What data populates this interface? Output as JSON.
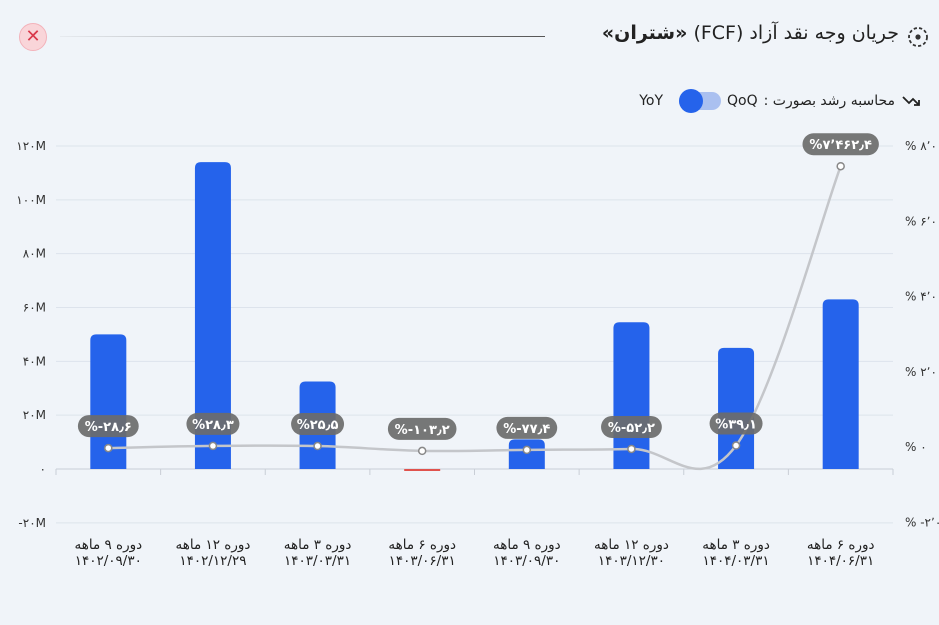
{
  "header": {
    "close_icon": "close-icon",
    "title_prefix": "جریان وجه نقد آزاد (FCF)",
    "title_ticker": "«شتران»",
    "title_icon": "target-icon"
  },
  "controls": {
    "growth_label": "محاسبه رشد بصورت :",
    "option_left": "YoY",
    "option_right": "QoQ",
    "growth_icon": "trend-icon",
    "selected": "QoQ"
  },
  "colors": {
    "bar": "#2563eb",
    "negative_bar": "#e0524d",
    "line": "#c4c6ca",
    "label_bg": "#6b6b6b",
    "background": "#f0f4f9"
  },
  "chart_data": {
    "type": "bar",
    "categories": [
      [
        "دوره ۹ ماهه",
        "۱۴۰۲/۰۹/۳۰"
      ],
      [
        "دوره ۱۲ ماهه",
        "۱۴۰۲/۱۲/۲۹"
      ],
      [
        "دوره ۳ ماهه",
        "۱۴۰۳/۰۳/۳۱"
      ],
      [
        "دوره ۶ ماهه",
        "۱۴۰۳/۰۶/۳۱"
      ],
      [
        "دوره ۹ ماهه",
        "۱۴۰۳/۰۹/۳۰"
      ],
      [
        "دوره ۱۲ ماهه",
        "۱۴۰۳/۱۲/۳۰"
      ],
      [
        "دوره ۳ ماهه",
        "۱۴۰۴/۰۳/۳۱"
      ],
      [
        "دوره ۶ ماهه",
        "۱۴۰۴/۰۶/۳۱"
      ]
    ],
    "series": [
      {
        "type": "bar",
        "axis": "left",
        "values": [
          50,
          114,
          32.5,
          -0.5,
          11,
          54.5,
          45,
          63
        ]
      },
      {
        "type": "line",
        "axis": "right",
        "values": [
          -28.6,
          28.3,
          25.5,
          -103.2,
          -77.4,
          -52.2,
          39.1,
          7462.4
        ]
      }
    ],
    "growth_labels": [
      "%-۲۸٫۶",
      "%۲۸٫۳",
      "%۲۵٫۵",
      "%-۱۰۳٫۲",
      "%-۷۷٫۴",
      "%-۵۲٫۲",
      "%۳۹٫۱",
      "%۷٬۴۶۲٫۴"
    ],
    "y_left": {
      "ticks": [
        -20,
        0,
        20,
        40,
        60,
        80,
        100,
        120
      ],
      "tick_labels": [
        "-۲۰M",
        "۰",
        "۲۰M",
        "۴۰M",
        "۶۰M",
        "۸۰M",
        "۱۰۰M",
        "۱۲۰M"
      ],
      "ylim": [
        -20,
        120
      ]
    },
    "y_right": {
      "ticks": [
        -2000,
        0,
        2000,
        4000,
        6000,
        8000
      ],
      "tick_labels": [
        "% -۲٬۰۰۰",
        "% ۰",
        "% ۲٬۰۰۰",
        "% ۴٬۰۰۰",
        "% ۶٬۰۰۰",
        "% ۸٬۰۰۰"
      ],
      "ylim": [
        -2000,
        8000
      ]
    },
    "grid": true
  }
}
